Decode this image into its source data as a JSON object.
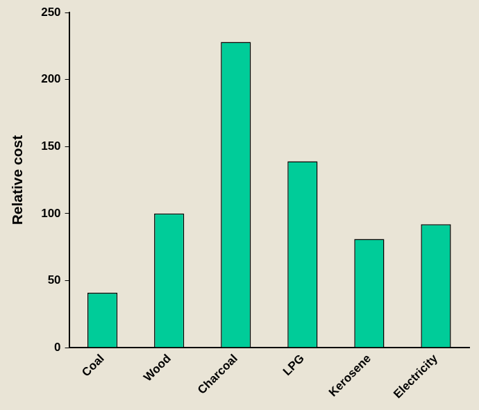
{
  "chart_data": {
    "type": "bar",
    "y_label": "Relative cost",
    "categories": [
      "Coal",
      "Wood",
      "Charcoal",
      "LPG",
      "Kerosene",
      "Electricity"
    ],
    "values": [
      41,
      100,
      228,
      139,
      81,
      92
    ],
    "color": "#00cc99",
    "ylim": [
      0,
      250
    ],
    "yticks": [
      0,
      50,
      100,
      150,
      200,
      250
    ],
    "grid": false
  }
}
